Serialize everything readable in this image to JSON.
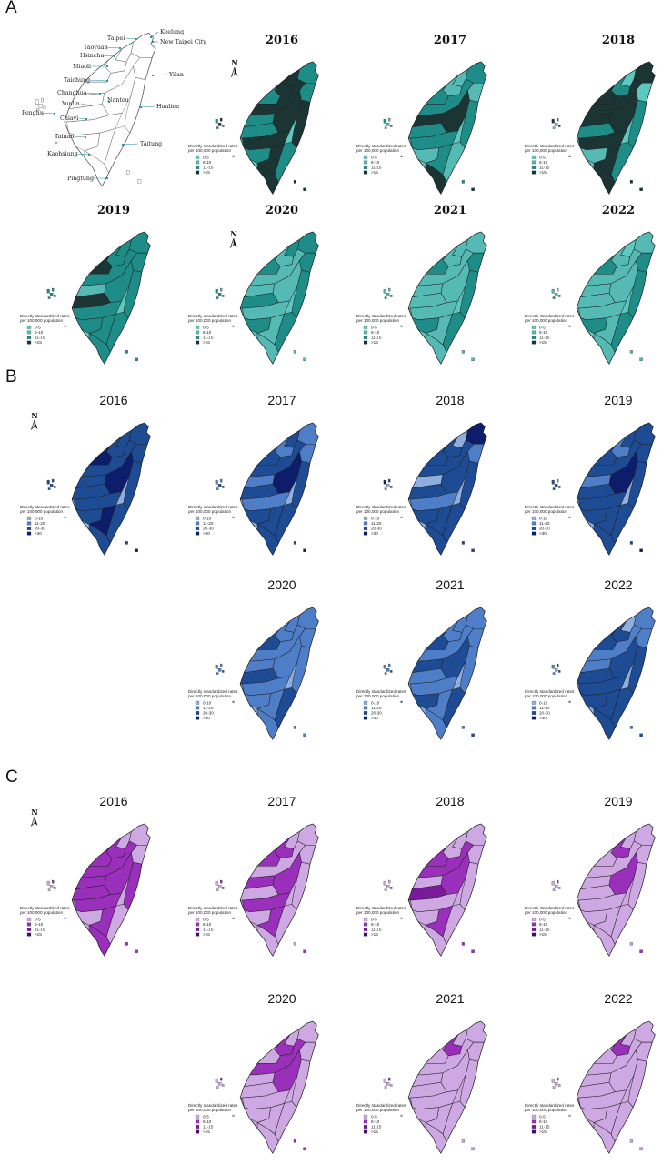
{
  "panels": [
    {
      "letter": "A",
      "palette": [
        "#5cc8c0",
        "#55b9b4",
        "#1e8d88",
        "#1a3533"
      ],
      "legend_title_line1": "Directly standardized rates",
      "legend_title_line2": "per 100,000 population",
      "legend_labels": [
        "0-5",
        "6-10",
        "11-15",
        ">15"
      ],
      "years": [
        {
          "year": "2016",
          "levels": [
            2,
            3,
            3,
            2,
            2,
            3,
            3,
            2,
            3,
            2,
            3,
            2,
            2,
            3,
            3
          ]
        },
        {
          "year": "2017",
          "levels": [
            2,
            1,
            1,
            1,
            2,
            2,
            3,
            3,
            2,
            2,
            2,
            1,
            1,
            2,
            3
          ]
        },
        {
          "year": "2018",
          "levels": [
            3,
            0,
            2,
            0,
            3,
            3,
            3,
            3,
            2,
            2,
            3,
            1,
            2,
            3,
            3
          ]
        },
        {
          "year": "2019",
          "levels": [
            2,
            2,
            2,
            2,
            3,
            2,
            2,
            1,
            2,
            3,
            2,
            2,
            2,
            2,
            2
          ]
        },
        {
          "year": "2020",
          "levels": [
            2,
            2,
            1,
            2,
            2,
            1,
            1,
            1,
            2,
            2,
            1,
            2,
            2,
            1,
            1
          ]
        },
        {
          "year": "2021",
          "levels": [
            1,
            1,
            1,
            2,
            2,
            1,
            1,
            1,
            2,
            1,
            1,
            2,
            2,
            1,
            1
          ]
        },
        {
          "year": "2022",
          "levels": [
            1,
            0,
            1,
            2,
            2,
            1,
            1,
            1,
            2,
            1,
            1,
            2,
            2,
            1,
            1
          ]
        }
      ]
    },
    {
      "letter": "B",
      "palette": [
        "#8eaee0",
        "#4f7ec8",
        "#1d4b94",
        "#0d1d6b"
      ],
      "legend_title_line1": "Directly standardized rates",
      "legend_title_line2": "per 100,000 population",
      "legend_labels": [
        "0-10",
        "11-20",
        "20-30",
        ">30"
      ],
      "years": [
        {
          "year": "2016",
          "levels": [
            2,
            2,
            2,
            2,
            3,
            2,
            3,
            2,
            2,
            2,
            2,
            2,
            2,
            3,
            2
          ]
        },
        {
          "year": "2017",
          "levels": [
            1,
            2,
            1,
            1,
            2,
            2,
            3,
            1,
            2,
            2,
            1,
            2,
            2,
            2,
            2
          ]
        },
        {
          "year": "2018",
          "levels": [
            3,
            0,
            2,
            1,
            2,
            2,
            2,
            0,
            2,
            2,
            1,
            2,
            2,
            2,
            2
          ]
        },
        {
          "year": "2019",
          "levels": [
            2,
            2,
            1,
            2,
            2,
            2,
            3,
            1,
            2,
            2,
            2,
            2,
            2,
            2,
            2
          ]
        },
        {
          "year": "2020",
          "levels": [
            1,
            1,
            1,
            1,
            2,
            1,
            1,
            1,
            1,
            2,
            1,
            1,
            2,
            1,
            1
          ]
        },
        {
          "year": "2021",
          "levels": [
            1,
            1,
            1,
            1,
            2,
            1,
            2,
            2,
            1,
            1,
            1,
            2,
            2,
            1,
            1
          ]
        },
        {
          "year": "2022",
          "levels": [
            1,
            0,
            2,
            1,
            2,
            1,
            2,
            1,
            2,
            2,
            2,
            2,
            2,
            2,
            2
          ]
        }
      ]
    },
    {
      "letter": "C",
      "palette": [
        "#cda8e3",
        "#9a2fbc",
        "#7a1a9b",
        "#4b0a6b"
      ],
      "legend_title_line1": "Directly standardized rates",
      "legend_title_line2": "per 100,000 population",
      "legend_labels": [
        "0-5",
        "6-10",
        "11-15",
        ">15"
      ],
      "years": [
        {
          "year": "2016",
          "levels": [
            0,
            0,
            1,
            0,
            1,
            1,
            1,
            1,
            1,
            1,
            1,
            0,
            0,
            1,
            1
          ]
        },
        {
          "year": "2017",
          "levels": [
            0,
            0,
            1,
            0,
            1,
            0,
            1,
            1,
            0,
            0,
            1,
            0,
            0,
            1,
            0
          ]
        },
        {
          "year": "2018",
          "levels": [
            0,
            0,
            0,
            0,
            1,
            1,
            1,
            0,
            0,
            2,
            0,
            0,
            0,
            1,
            0
          ]
        },
        {
          "year": "2019",
          "levels": [
            0,
            0,
            1,
            0,
            0,
            0,
            1,
            0,
            0,
            0,
            0,
            0,
            0,
            0,
            0
          ]
        },
        {
          "year": "2020",
          "levels": [
            0,
            0,
            1,
            0,
            0,
            1,
            1,
            0,
            0,
            0,
            0,
            0,
            0,
            0,
            0
          ]
        },
        {
          "year": "2021",
          "levels": [
            0,
            0,
            1,
            0,
            0,
            0,
            0,
            0,
            0,
            0,
            0,
            0,
            0,
            0,
            0
          ]
        },
        {
          "year": "2022",
          "levels": [
            0,
            0,
            1,
            0,
            0,
            0,
            0,
            0,
            0,
            0,
            0,
            0,
            0,
            0,
            0
          ]
        }
      ]
    }
  ],
  "reference_map": {
    "north_label": "N",
    "cities": [
      "Keelung",
      "Taipei",
      "New Taipei City",
      "Taoyuan",
      "Hsinchu",
      "Yilan",
      "Miaoli",
      "Taichung",
      "Changhua",
      "Nantou",
      "Hualien",
      "Yunlin",
      "Penghu",
      "Chiayi",
      "Tainan",
      "Taitung",
      "Kaohsiung",
      "Pingtung"
    ]
  },
  "north_label": "N"
}
